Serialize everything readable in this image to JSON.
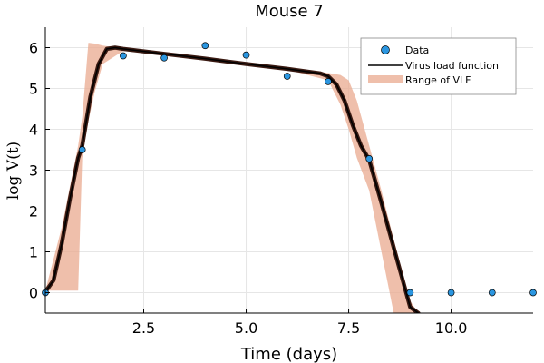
{
  "chart_data": {
    "type": "line",
    "title": "Mouse 7",
    "xlabel": "Time (days)",
    "ylabel": "log V(t)",
    "xlim": [
      0.1,
      12.0
    ],
    "ylim": [
      -0.5,
      6.5
    ],
    "xticks": [
      {
        "value": 2.5,
        "label": "2.5"
      },
      {
        "value": 5.0,
        "label": "5.0"
      },
      {
        "value": 7.5,
        "label": "7.5"
      },
      {
        "value": 10.0,
        "label": "10.0"
      }
    ],
    "yticks": [
      {
        "value": 0,
        "label": "0"
      },
      {
        "value": 1,
        "label": "1"
      },
      {
        "value": 2,
        "label": "2"
      },
      {
        "value": 3,
        "label": "3"
      },
      {
        "value": 4,
        "label": "4"
      },
      {
        "value": 5,
        "label": "5"
      },
      {
        "value": 6,
        "label": "6"
      }
    ],
    "grid": true,
    "legend_position": "top-right",
    "series": [
      {
        "name": "Data",
        "kind": "scatter",
        "color": "#2b96e0",
        "x": [
          0,
          1,
          2,
          3,
          4,
          5,
          6,
          7,
          8,
          9,
          10,
          11,
          12
        ],
        "y": [
          0,
          3.5,
          5.8,
          5.75,
          6.05,
          5.82,
          5.3,
          5.17,
          3.28,
          0,
          0,
          0,
          0
        ]
      },
      {
        "name": "Virus load function",
        "kind": "line",
        "color": "#000000",
        "x": [
          0.1,
          0.3,
          0.5,
          0.7,
          0.9,
          1.0,
          1.2,
          1.4,
          1.6,
          1.8,
          2.0,
          3.0,
          4.0,
          5.0,
          6.0,
          6.8,
          7.0,
          7.2,
          7.4,
          7.6,
          7.8,
          8.0,
          8.3,
          8.6,
          9.0,
          9.2
        ],
        "y": [
          0.02,
          0.3,
          1.2,
          2.3,
          3.3,
          3.6,
          4.8,
          5.6,
          5.97,
          6.0,
          5.97,
          5.85,
          5.73,
          5.6,
          5.48,
          5.37,
          5.3,
          5.1,
          4.7,
          4.1,
          3.6,
          3.25,
          2.2,
          1.1,
          -0.35,
          -0.5
        ]
      },
      {
        "name": "Range of VLF",
        "kind": "band",
        "color": "#eaa98f",
        "x": [
          0.1,
          0.5,
          0.9,
          1.0,
          1.15,
          1.3,
          1.5,
          2.0,
          3.0,
          4.0,
          5.0,
          6.0,
          7.0,
          7.3,
          7.5,
          7.7,
          8.0,
          8.3,
          8.6,
          9.0,
          9.2
        ],
        "upper": [
          0.05,
          1.6,
          3.6,
          4.3,
          6.12,
          6.1,
          6.05,
          5.98,
          5.86,
          5.74,
          5.62,
          5.5,
          5.38,
          5.33,
          5.2,
          4.7,
          3.6,
          2.5,
          1.3,
          -0.2,
          -0.5
        ],
        "lower": [
          0.05,
          0.05,
          0.05,
          3.3,
          4.2,
          4.9,
          5.6,
          5.92,
          5.82,
          5.7,
          5.58,
          5.46,
          5.2,
          4.6,
          4.0,
          3.3,
          2.5,
          1.0,
          -0.5,
          -0.5,
          -0.5
        ]
      }
    ]
  }
}
